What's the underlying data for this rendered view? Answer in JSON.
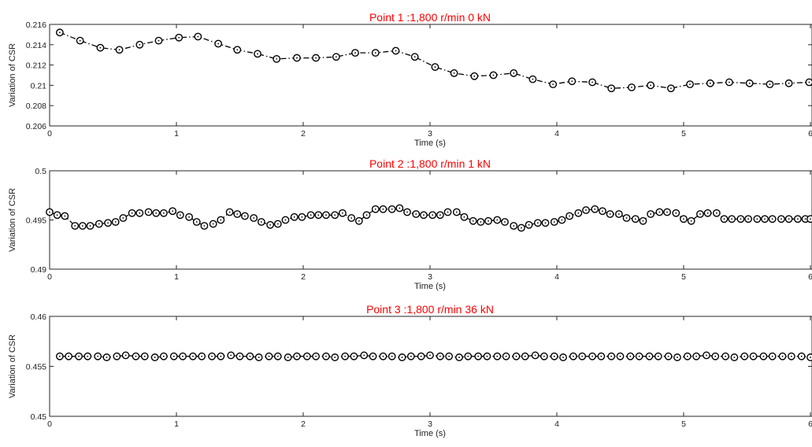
{
  "chart_data": [
    {
      "type": "line",
      "title": "Point 1 :1,800 r/min 0 kN",
      "xlabel": "Time (s)",
      "ylabel": "Variation of CSR",
      "xlim": [
        0,
        6
      ],
      "ylim": [
        0.206,
        0.216
      ],
      "xticks": [
        "0",
        "1",
        "2",
        "3",
        "4",
        "5",
        "6"
      ],
      "yticks": [
        "0.206",
        "0.208",
        "0.21",
        "0.212",
        "0.214",
        "0.216"
      ],
      "grid": false,
      "line_style": "dash-dot",
      "marker": "circle-dot",
      "series": [
        {
          "x": [
            0.08,
            0.24,
            0.4,
            0.55,
            0.71,
            0.86,
            1.02,
            1.17,
            1.33,
            1.48,
            1.64,
            1.79,
            1.95,
            2.1,
            2.26,
            2.41,
            2.57,
            2.73,
            2.88,
            3.04,
            3.19,
            3.35,
            3.5,
            3.66,
            3.81,
            3.97,
            4.12,
            4.28,
            4.43,
            4.59,
            4.74,
            4.9,
            5.05,
            5.21,
            5.36,
            5.52,
            5.68,
            5.83,
            5.99
          ],
          "values": [
            0.2152,
            0.2144,
            0.2137,
            0.2135,
            0.214,
            0.2144,
            0.2147,
            0.2148,
            0.2141,
            0.2135,
            0.2131,
            0.2126,
            0.2127,
            0.2127,
            0.2128,
            0.2132,
            0.2132,
            0.2134,
            0.2128,
            0.2118,
            0.2112,
            0.2109,
            0.211,
            0.2112,
            0.2106,
            0.2101,
            0.2104,
            0.2103,
            0.2097,
            0.2098,
            0.21,
            0.2097,
            0.2101,
            0.2102,
            0.2103,
            0.2102,
            0.2101,
            0.2102,
            0.2103
          ]
        }
      ]
    },
    {
      "type": "line",
      "title": "Point 2 :1,800 r/min 1 kN",
      "xlabel": "Time (s)",
      "ylabel": "Variation of CSR",
      "xlim": [
        0,
        6
      ],
      "ylim": [
        0.49,
        0.5
      ],
      "xticks": [
        "0",
        "1",
        "2",
        "3",
        "4",
        "5",
        "6"
      ],
      "yticks": [
        "0.49",
        "0.495",
        "0.5"
      ],
      "grid": false,
      "line_style": "dash-dot",
      "marker": "circle-dot",
      "series": [
        {
          "x": [
            0.0,
            0.06,
            0.12,
            0.2,
            0.26,
            0.32,
            0.39,
            0.46,
            0.52,
            0.58,
            0.65,
            0.71,
            0.78,
            0.84,
            0.9,
            0.97,
            1.03,
            1.1,
            1.16,
            1.22,
            1.29,
            1.35,
            1.42,
            1.48,
            1.54,
            1.61,
            1.67,
            1.74,
            1.8,
            1.86,
            1.93,
            1.99,
            2.06,
            2.12,
            2.18,
            2.25,
            2.31,
            2.38,
            2.44,
            2.5,
            2.57,
            2.63,
            2.7,
            2.76,
            2.82,
            2.89,
            2.95,
            3.02,
            3.08,
            3.14,
            3.21,
            3.27,
            3.34,
            3.4,
            3.46,
            3.53,
            3.59,
            3.66,
            3.72,
            3.78,
            3.85,
            3.91,
            3.98,
            4.04,
            4.1,
            4.17,
            4.23,
            4.3,
            4.36,
            4.42,
            4.49,
            4.55,
            4.62,
            4.68,
            4.74,
            4.81,
            4.87,
            4.94,
            5.0,
            5.06,
            5.13,
            5.19,
            5.26,
            5.32,
            5.38,
            5.45,
            5.51,
            5.58,
            5.64,
            5.7,
            5.77,
            5.83,
            5.9,
            5.96,
            6.0
          ],
          "values": [
            0.4958,
            0.4955,
            0.4954,
            0.4944,
            0.4944,
            0.4944,
            0.4946,
            0.4947,
            0.4948,
            0.4952,
            0.4957,
            0.4957,
            0.4958,
            0.4957,
            0.4957,
            0.4959,
            0.4955,
            0.4953,
            0.4948,
            0.4944,
            0.4946,
            0.495,
            0.4958,
            0.4956,
            0.4954,
            0.4952,
            0.4948,
            0.4945,
            0.4946,
            0.495,
            0.4953,
            0.4953,
            0.4955,
            0.4955,
            0.4955,
            0.4955,
            0.4957,
            0.4952,
            0.4949,
            0.4955,
            0.4961,
            0.4961,
            0.4961,
            0.4962,
            0.4958,
            0.4956,
            0.4955,
            0.4955,
            0.4955,
            0.4958,
            0.4958,
            0.4953,
            0.4949,
            0.4948,
            0.4949,
            0.495,
            0.4948,
            0.4944,
            0.4942,
            0.4945,
            0.4947,
            0.4947,
            0.4948,
            0.495,
            0.4954,
            0.4957,
            0.496,
            0.4961,
            0.4959,
            0.4956,
            0.4956,
            0.4952,
            0.4951,
            0.4949,
            0.4956,
            0.4958,
            0.4958,
            0.4957,
            0.4951,
            0.4949,
            0.4956,
            0.4957,
            0.4957,
            0.4951,
            0.4951,
            0.4951,
            0.4951,
            0.4951,
            0.4951,
            0.4951,
            0.4951,
            0.4951,
            0.4951,
            0.4951,
            0.4951
          ]
        }
      ]
    },
    {
      "type": "line",
      "title": "Point 3 :1,800 r/min 36 kN",
      "xlabel": "Time (s)",
      "ylabel": "Variation of CSR",
      "xlim": [
        0,
        6
      ],
      "ylim": [
        0.45,
        0.46
      ],
      "xticks": [
        "0",
        "1",
        "2",
        "3",
        "4",
        "5",
        "6"
      ],
      "yticks": [
        "0.45",
        "0.455",
        "0.46"
      ],
      "grid": false,
      "line_style": "dash-dot",
      "marker": "circle-dot",
      "series": [
        {
          "x": [
            0.08,
            0.15,
            0.23,
            0.3,
            0.38,
            0.45,
            0.53,
            0.6,
            0.68,
            0.75,
            0.83,
            0.9,
            0.98,
            1.05,
            1.13,
            1.2,
            1.28,
            1.35,
            1.43,
            1.5,
            1.58,
            1.65,
            1.73,
            1.8,
            1.88,
            1.95,
            2.03,
            2.1,
            2.18,
            2.25,
            2.33,
            2.4,
            2.48,
            2.55,
            2.63,
            2.7,
            2.78,
            2.85,
            2.93,
            3.0,
            3.08,
            3.15,
            3.23,
            3.3,
            3.38,
            3.45,
            3.53,
            3.6,
            3.68,
            3.75,
            3.83,
            3.9,
            3.98,
            4.05,
            4.13,
            4.2,
            4.28,
            4.35,
            4.43,
            4.5,
            4.58,
            4.65,
            4.73,
            4.8,
            4.88,
            4.95,
            5.03,
            5.1,
            5.18,
            5.25,
            5.33,
            5.4,
            5.48,
            5.55,
            5.63,
            5.7,
            5.78,
            5.85,
            5.93,
            6.0
          ],
          "values": [
            0.456,
            0.456,
            0.456,
            0.456,
            0.456,
            0.4559,
            0.456,
            0.4561,
            0.456,
            0.456,
            0.4559,
            0.456,
            0.456,
            0.456,
            0.456,
            0.456,
            0.456,
            0.456,
            0.4561,
            0.456,
            0.456,
            0.4559,
            0.456,
            0.456,
            0.4559,
            0.456,
            0.456,
            0.456,
            0.456,
            0.4559,
            0.456,
            0.456,
            0.4561,
            0.456,
            0.456,
            0.456,
            0.4559,
            0.456,
            0.456,
            0.4561,
            0.456,
            0.456,
            0.4559,
            0.456,
            0.456,
            0.456,
            0.456,
            0.456,
            0.456,
            0.456,
            0.4561,
            0.456,
            0.456,
            0.4559,
            0.456,
            0.456,
            0.456,
            0.456,
            0.456,
            0.456,
            0.456,
            0.456,
            0.456,
            0.456,
            0.456,
            0.4559,
            0.456,
            0.456,
            0.4561,
            0.456,
            0.456,
            0.4559,
            0.456,
            0.456,
            0.456,
            0.456,
            0.456,
            0.456,
            0.456,
            0.4559
          ]
        }
      ]
    }
  ]
}
